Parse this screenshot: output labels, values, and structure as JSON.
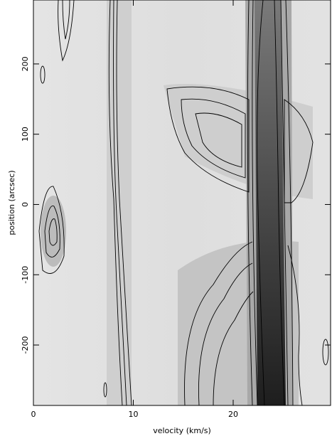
{
  "chart_data": {
    "type": "contour",
    "xlabel": "velocity (km/s)",
    "ylabel": "position (arcsec)",
    "xlim": [
      0,
      29.75
    ],
    "ylim": [
      -286,
      291
    ],
    "xticks": [
      0,
      10,
      20
    ],
    "yticks": [
      -200,
      -100,
      0,
      100,
      200
    ]
  }
}
